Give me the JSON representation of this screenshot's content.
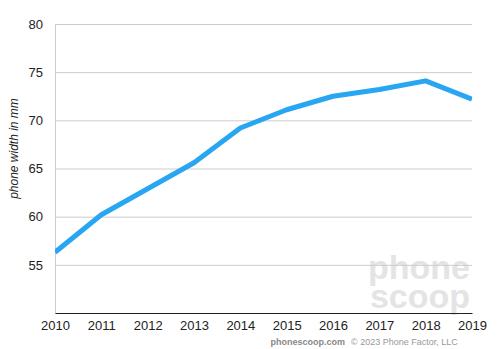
{
  "chart_data": {
    "type": "line",
    "y_label": "phone width in mm",
    "x": [
      2010,
      2011,
      2012,
      2013,
      2014,
      2015,
      2016,
      2017,
      2018,
      2019
    ],
    "values": [
      56.3,
      60.2,
      62.9,
      65.6,
      69.2,
      71.1,
      72.5,
      73.2,
      74.1,
      72.2
    ],
    "color": "#29a6f2",
    "xlim": [
      2010,
      2019
    ],
    "xticks": [
      2010,
      2011,
      2012,
      2013,
      2014,
      2015,
      2016,
      2017,
      2018,
      2019
    ],
    "ylim": [
      50,
      80
    ],
    "yticks": [
      55,
      60,
      65,
      70,
      75,
      80
    ],
    "grid": true,
    "annotations": [
      "phone",
      "scoop",
      "phonescoop.com",
      "© 2023 Phone Factor, LLC"
    ]
  }
}
